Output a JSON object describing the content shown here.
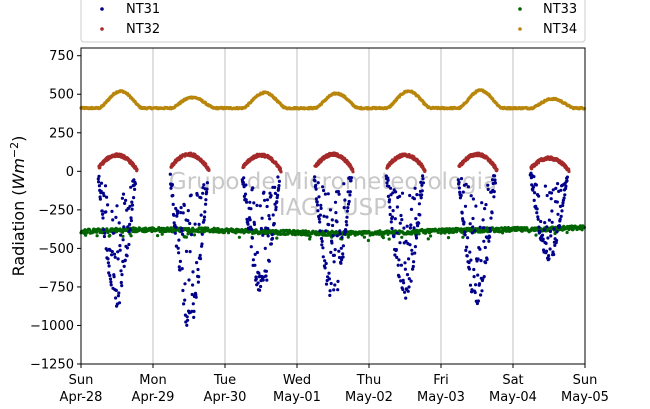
{
  "chart_data": {
    "type": "scatter",
    "ylabel_main": "Radiation (",
    "ylabel_unit": "Wm",
    "ylabel_exp": "−2",
    "ylabel_close": ")",
    "ylim": [
      -1250,
      800
    ],
    "xlim": [
      0,
      7
    ],
    "yticks": [
      -1250,
      -1000,
      -750,
      -500,
      -250,
      0,
      250,
      500,
      750
    ],
    "ytick_labels": [
      "−1250",
      "−1000",
      "−750",
      "−500",
      "−250",
      "0",
      "250",
      "500",
      "750"
    ],
    "xticks": [
      {
        "day": "Sun",
        "date": "Apr-28"
      },
      {
        "day": "Mon",
        "date": "Apr-29"
      },
      {
        "day": "Tue",
        "date": "Apr-30"
      },
      {
        "day": "Wed",
        "date": "May-01"
      },
      {
        "day": "Thu",
        "date": "May-02"
      },
      {
        "day": "Fri",
        "date": "May-03"
      },
      {
        "day": "Sat",
        "date": "May-04"
      },
      {
        "day": "Sun",
        "date": "May-05"
      }
    ],
    "grid": "vertical",
    "watermark_line1": "Grupo de Micrometeorologia",
    "watermark_line2": "IAG - USP",
    "legend_placement": "top",
    "series": [
      {
        "name": "NT31",
        "color": "#00008b",
        "description": "downward shortwave (negative), daily minimum values",
        "daily_min": [
          -880,
          -1030,
          -800,
          -860,
          -830,
          -880,
          -590
        ]
      },
      {
        "name": "NT32",
        "color": "#a52a2a",
        "description": "upward shortwave (reflected), daily maximum values",
        "daily_max": [
          105,
          110,
          105,
          110,
          105,
          110,
          85
        ]
      },
      {
        "name": "NT33",
        "color": "#006400",
        "description": "downward longwave",
        "baseline": -390
      },
      {
        "name": "NT34",
        "color": "#b8860b",
        "description": "upward longwave, daily peak values",
        "baseline": 410,
        "daily_max": [
          520,
          480,
          510,
          505,
          520,
          525,
          470
        ]
      }
    ]
  }
}
